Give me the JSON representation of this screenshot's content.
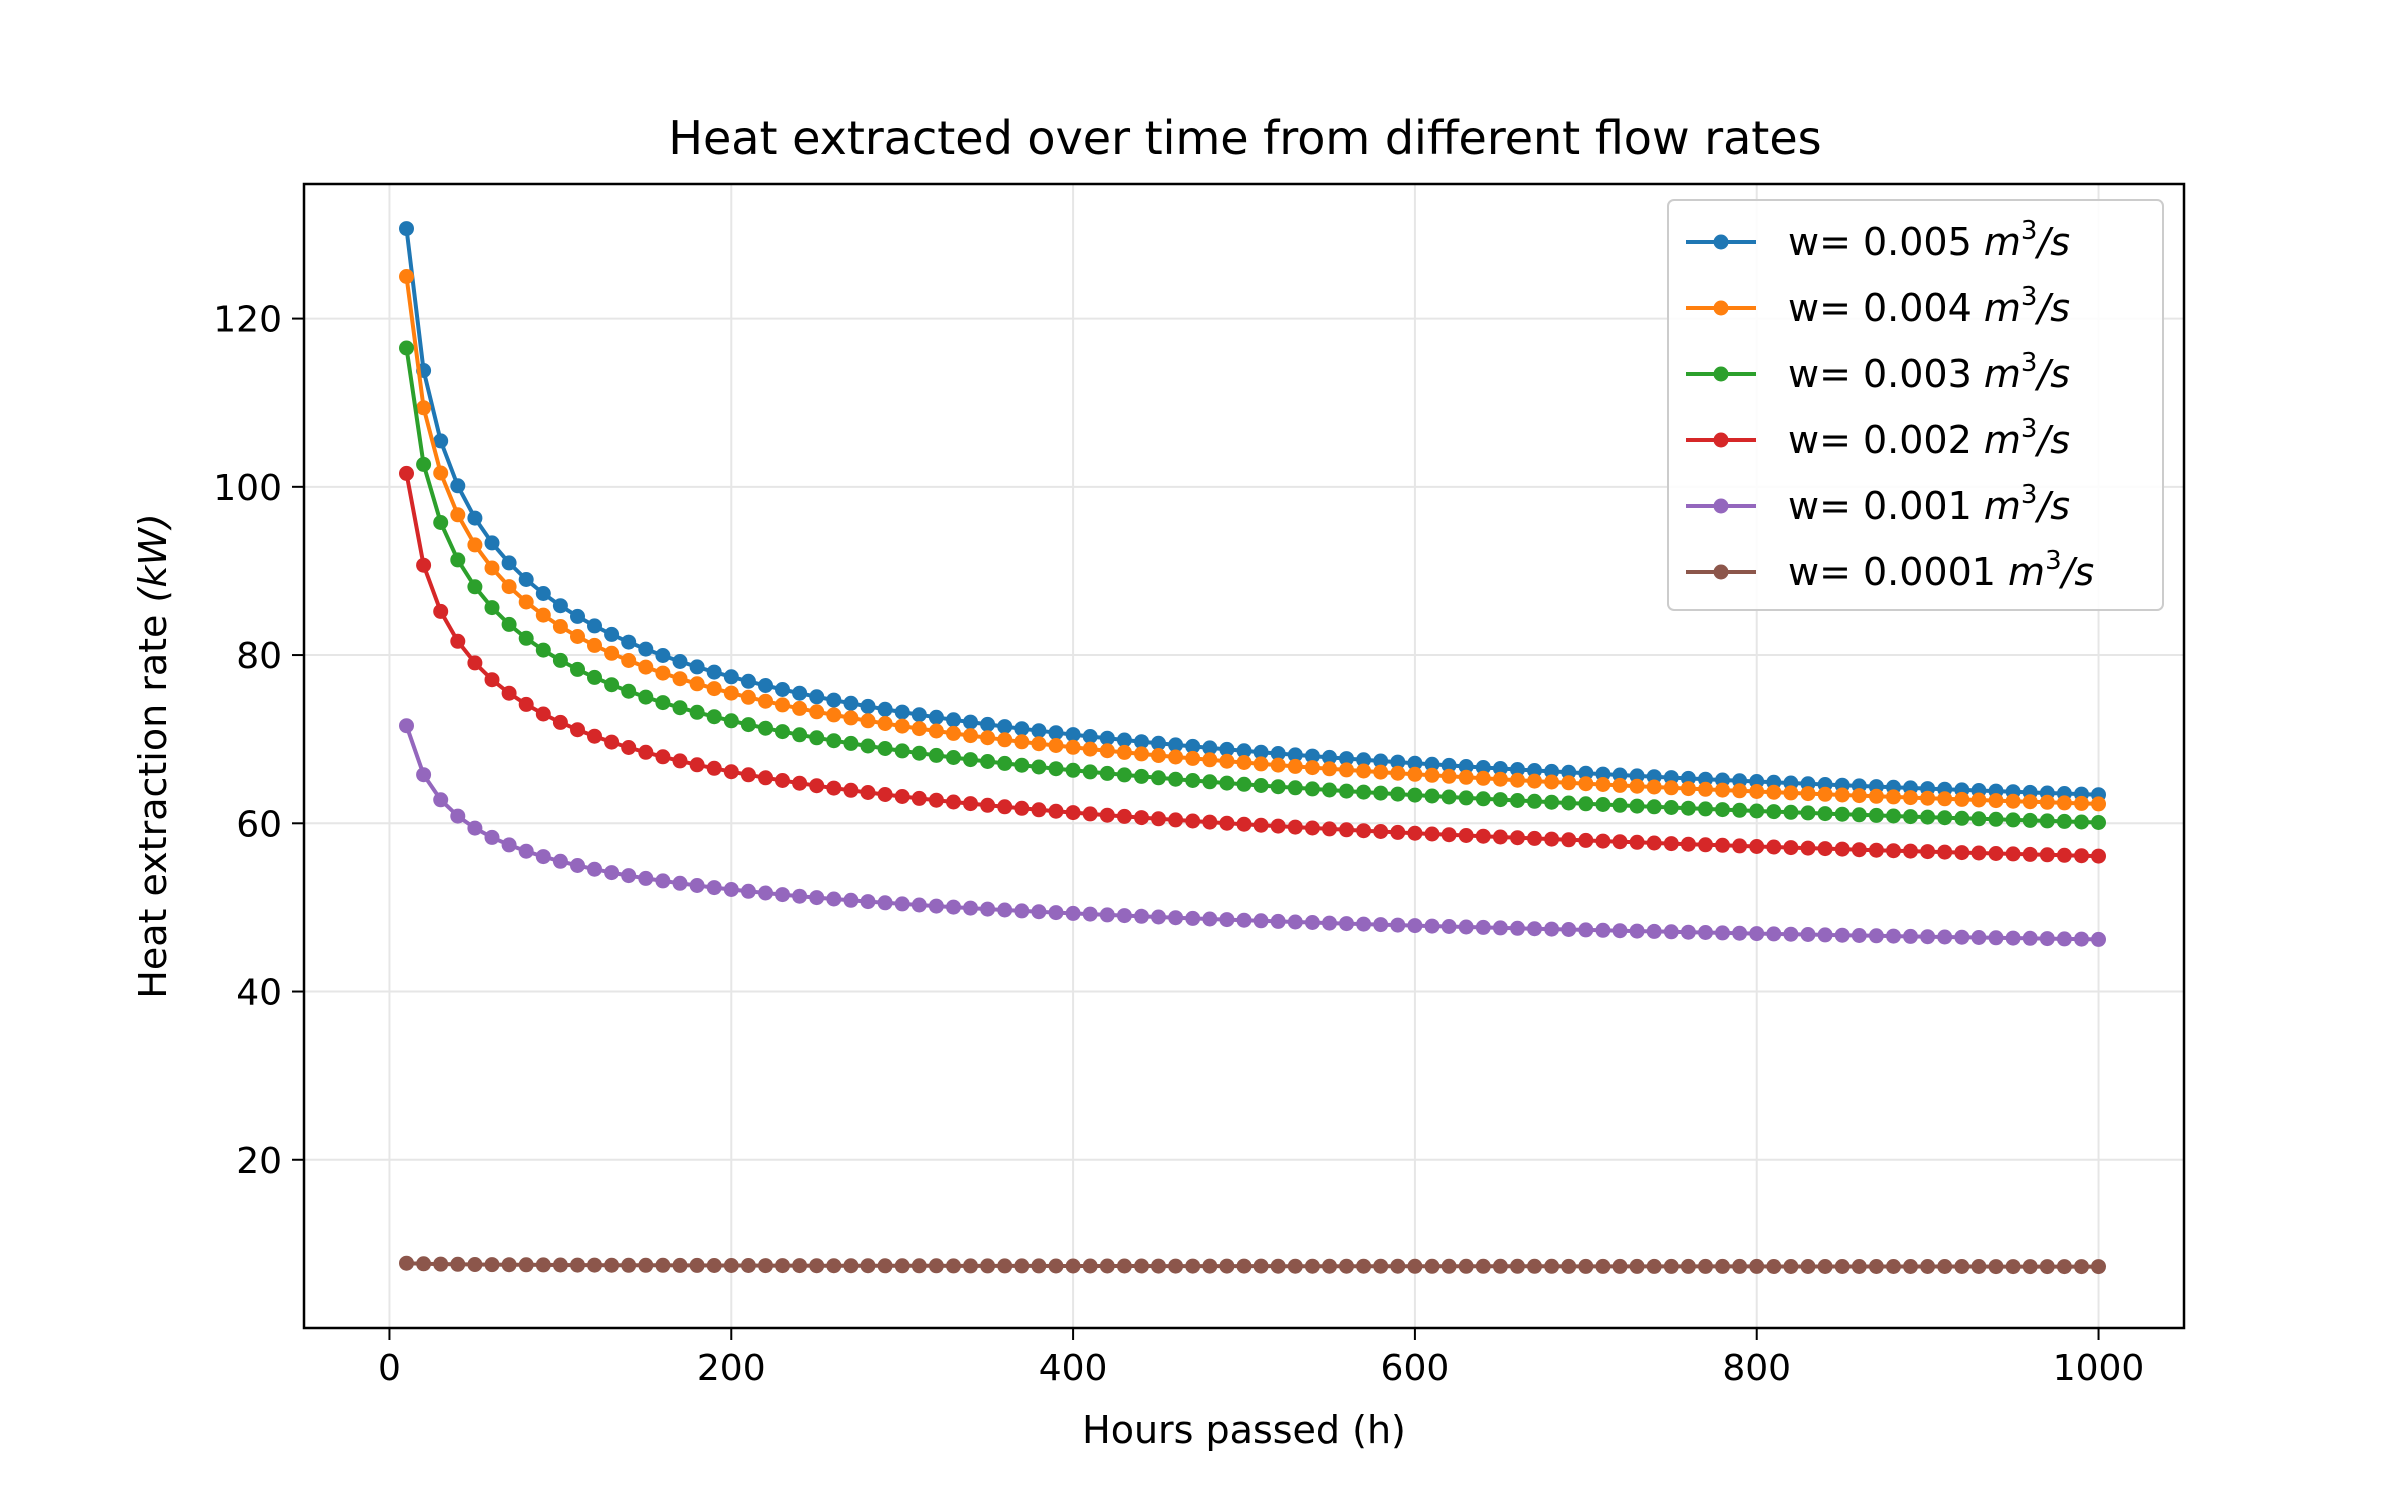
{
  "chart_data": {
    "type": "line",
    "title": "Heat extracted over time from different flow rates",
    "xlabel": "Hours passed (h)",
    "ylabel_text": "Heat extraction rate ",
    "ylabel_unit": "(kW)",
    "xlim": [
      -50,
      1050
    ],
    "ylim": [
      0,
      136
    ],
    "xticks": [
      0,
      200,
      400,
      600,
      800,
      1000
    ],
    "xtick_labels": [
      "0",
      "200",
      "400",
      "600",
      "800",
      "1000"
    ],
    "yticks": [
      20,
      40,
      60,
      80,
      100,
      120
    ],
    "ytick_labels": [
      "20",
      "40",
      "60",
      "80",
      "100",
      "120"
    ],
    "grid": true,
    "legend_position": "top-right",
    "x": [
      10,
      1000
    ],
    "x_step": 10,
    "series": [
      {
        "name": "w= 0.005",
        "unit_base": "m",
        "unit_exp": "3",
        "unit_tail": "/s",
        "color": "#1f77b4",
        "start": 130.7,
        "end": 63.4,
        "curve": 0.3
      },
      {
        "name": "w= 0.004",
        "unit_base": "m",
        "unit_exp": "3",
        "unit_tail": "/s",
        "color": "#ff7f0e",
        "start": 125.0,
        "end": 62.3,
        "curve": 0.295
      },
      {
        "name": "w= 0.003",
        "unit_base": "m",
        "unit_exp": "3",
        "unit_tail": "/s",
        "color": "#2ca02c",
        "start": 116.5,
        "end": 60.1,
        "curve": 0.285
      },
      {
        "name": "w= 0.002",
        "unit_base": "m",
        "unit_exp": "3",
        "unit_tail": "/s",
        "color": "#d62728",
        "start": 101.6,
        "end": 56.1,
        "curve": 0.27
      },
      {
        "name": "w= 0.001",
        "unit_base": "m",
        "unit_exp": "3",
        "unit_tail": "/s",
        "color": "#9467bd",
        "start": 71.6,
        "end": 46.2,
        "curve": 0.24
      },
      {
        "name": "w= 0.0001",
        "unit_base": "m",
        "unit_exp": "3",
        "unit_tail": "/s",
        "color": "#8c564b",
        "start": 7.7,
        "end": 7.3,
        "curve": 0.05
      }
    ]
  }
}
